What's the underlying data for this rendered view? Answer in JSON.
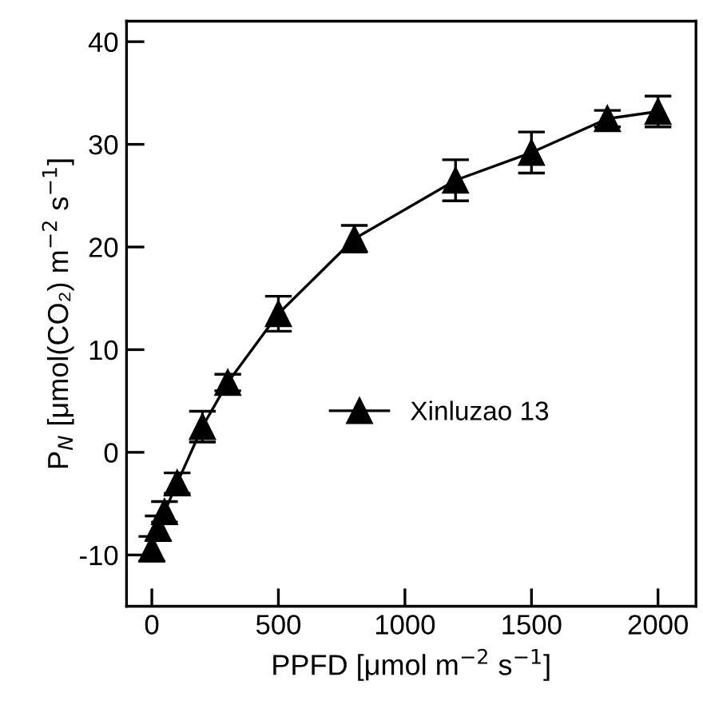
{
  "chart_data": {
    "type": "line",
    "xlabel": "PPFD [μmol m$^{−2}$ s$^{−1}$]",
    "ylabel": "P$_{N}$ [μmol(CO₂) m$^{−2}$ s$^{−1}$]",
    "x": [
      0,
      25,
      50,
      100,
      200,
      300,
      500,
      800,
      1200,
      1500,
      1800,
      2000
    ],
    "series": [
      {
        "name": "Xinluzao 13",
        "color": "#000000",
        "values": [
          -9.4,
          -7.4,
          -5.8,
          -3.0,
          2.5,
          6.8,
          13.5,
          20.8,
          26.5,
          29.2,
          32.5,
          33.2
        ],
        "errors": [
          1.2,
          1.2,
          1.0,
          1.0,
          1.5,
          0.8,
          1.7,
          1.3,
          2.0,
          2.0,
          0.8,
          1.5
        ]
      }
    ],
    "xlim": [
      -100,
      2150
    ],
    "ylim": [
      -15,
      42
    ],
    "xticks": [
      0,
      500,
      1000,
      1500,
      2000
    ],
    "yticks": [
      -10,
      0,
      10,
      20,
      30,
      40
    ],
    "marker": "triangle",
    "line_style": "solid",
    "grid": false,
    "legend": "bottom"
  }
}
